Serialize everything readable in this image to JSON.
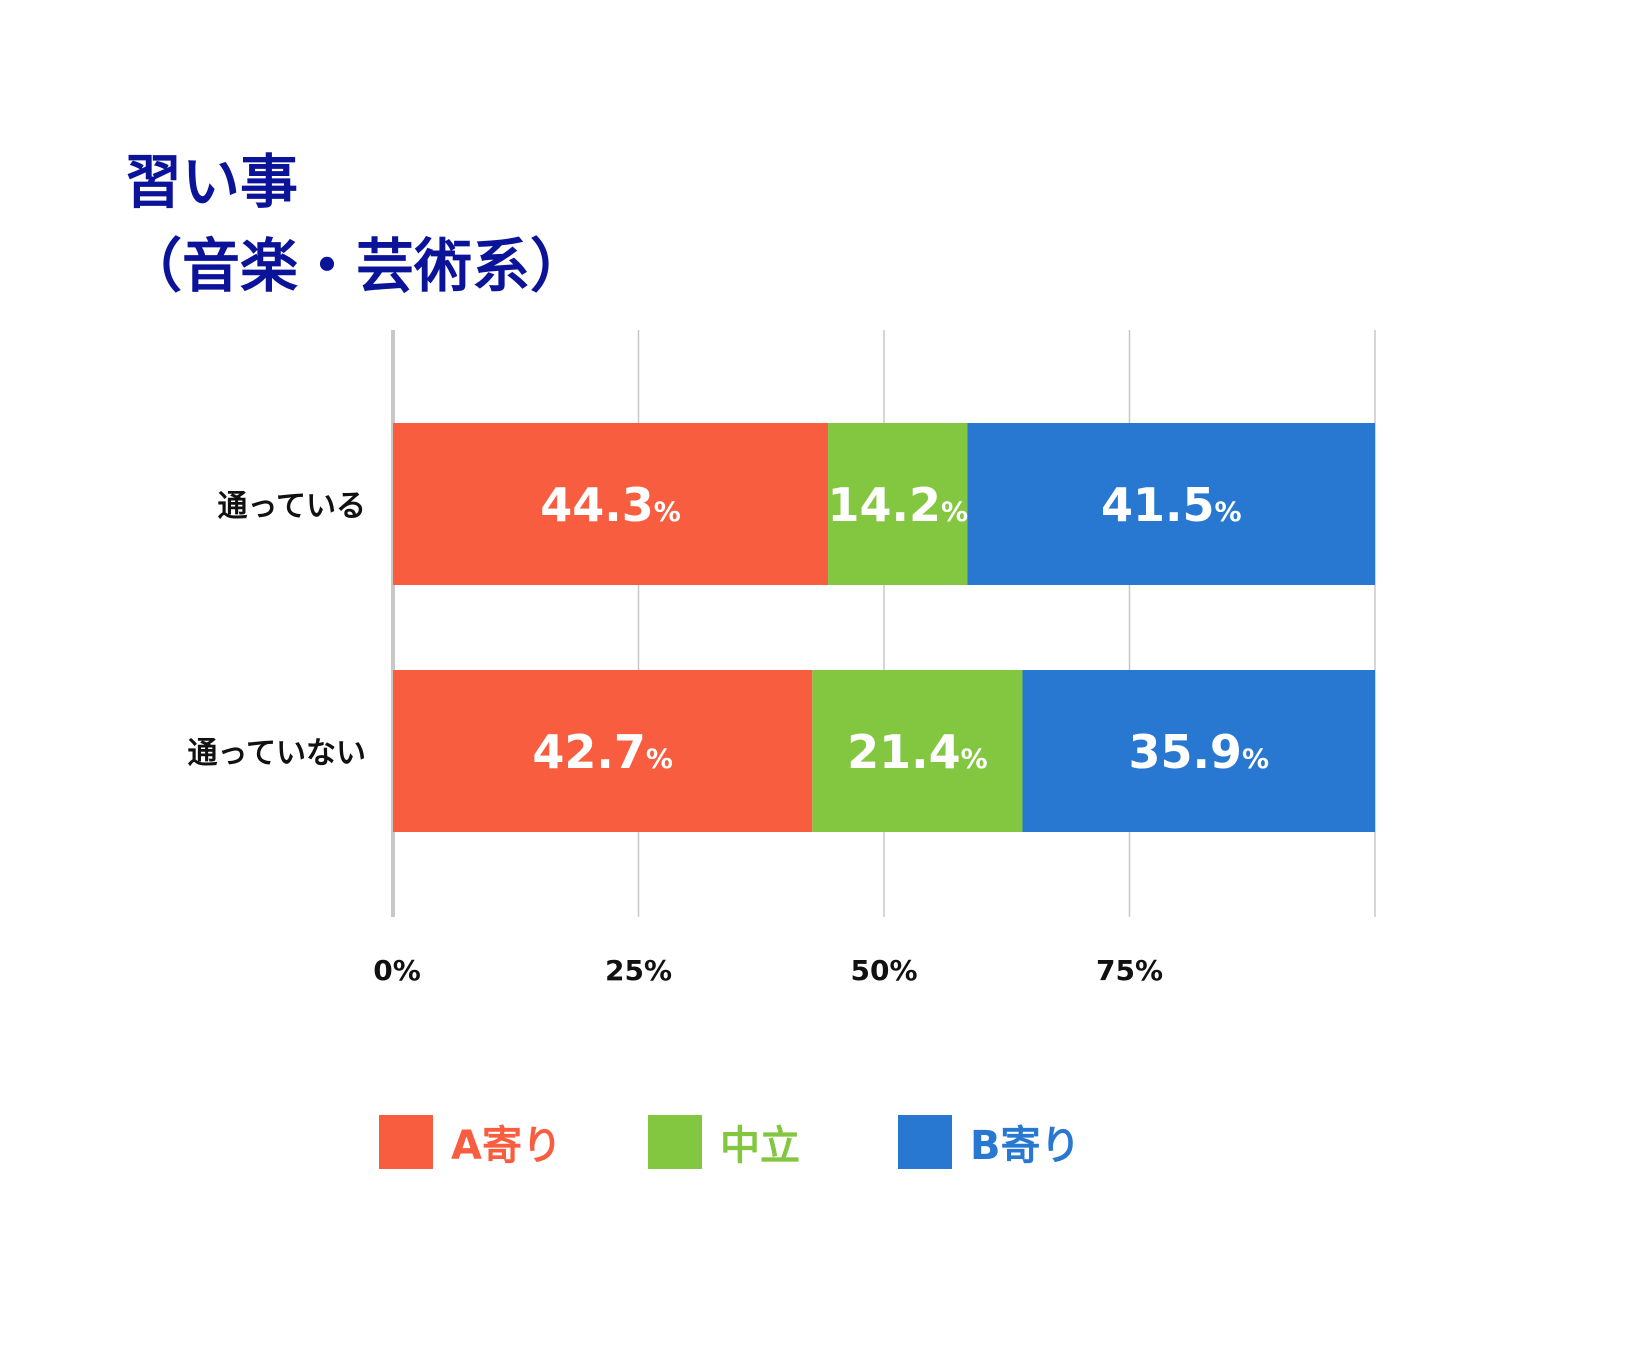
{
  "title_lines": [
    "習い事",
    "（音楽・芸術系）"
  ],
  "chart_data": {
    "type": "bar",
    "orientation": "horizontal",
    "stacked": true,
    "categories": [
      "通っている",
      "通っていない"
    ],
    "series": [
      {
        "name": "A寄り",
        "color": "#f85d3f",
        "values": [
          44.3,
          42.7
        ]
      },
      {
        "name": "中立",
        "color": "#83c640",
        "values": [
          14.2,
          21.4
        ]
      },
      {
        "name": "B寄り",
        "color": "#2878d1",
        "values": [
          41.5,
          35.9
        ]
      }
    ],
    "value_suffix": "%",
    "xlim": [
      0,
      100
    ],
    "x_ticks": [
      0,
      25,
      50,
      75
    ],
    "x_tick_labels": [
      "0%",
      "25%",
      "50%",
      "75%"
    ],
    "gridlines": [
      25,
      50,
      75,
      100
    ],
    "grid": true,
    "legend_position": "bottom",
    "axis_color": "#c8c8c8",
    "label_color": "#111111",
    "data_label_color": "#ffffff"
  }
}
